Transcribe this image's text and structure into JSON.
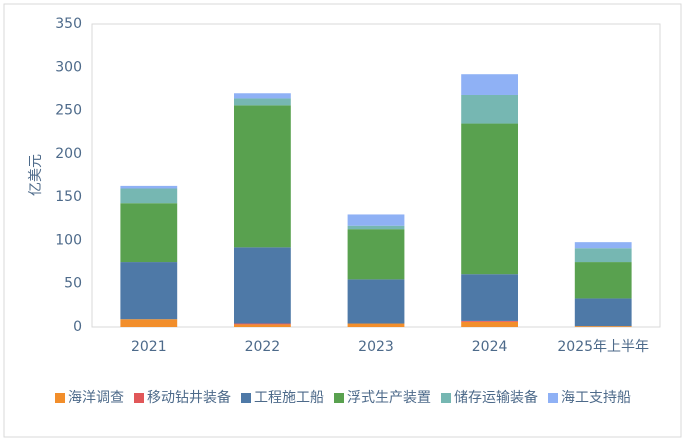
{
  "chart_data": {
    "type": "stacked_bar",
    "y_label": "亿美元",
    "categories": [
      "2021",
      "2022",
      "2023",
      "2024",
      "2025年上半年"
    ],
    "series": [
      {
        "name": "海洋调查",
        "color": "#f28e2b",
        "values": [
          9,
          3,
          4,
          6,
          1
        ]
      },
      {
        "name": "移动钻井装备",
        "color": "#e15759",
        "values": [
          0,
          1,
          0,
          1,
          0
        ]
      },
      {
        "name": "工程施工船",
        "color": "#4e79a7",
        "values": [
          66,
          88,
          51,
          54,
          32
        ]
      },
      {
        "name": "浮式生产装置",
        "color": "#59a14f",
        "values": [
          68,
          164,
          58,
          174,
          42
        ]
      },
      {
        "name": "储存运输装备",
        "color": "#76b7b2",
        "values": [
          17,
          8,
          4,
          33,
          16
        ]
      },
      {
        "name": "海工支持船",
        "color": "#8fb1f5",
        "values": [
          3,
          6,
          13,
          24,
          7
        ]
      }
    ],
    "ylim": [
      0,
      350
    ],
    "yticks": [
      0,
      50,
      100,
      150,
      200,
      250,
      300,
      350
    ],
    "grid": false,
    "legend": "bottom"
  }
}
